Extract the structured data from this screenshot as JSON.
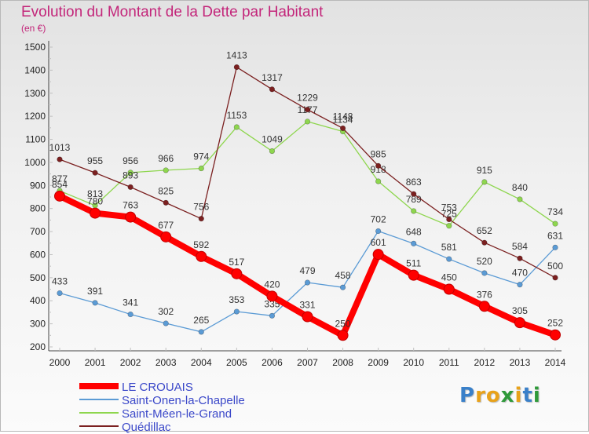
{
  "chart_data": {
    "type": "line",
    "title": "Evolution du Montant de la Dette par Habitant",
    "unit": "(en €)",
    "x": [
      "2000",
      "2001",
      "2002",
      "2003",
      "2004",
      "2005",
      "2006",
      "2007",
      "2008",
      "2009",
      "2010",
      "2011",
      "2012",
      "2013",
      "2014"
    ],
    "yticks": [
      "200",
      "300",
      "400",
      "500",
      "600",
      "700",
      "800",
      "900",
      "1000",
      "1100",
      "1200",
      "1300",
      "1400",
      "1500"
    ],
    "ylim": [
      200,
      1500
    ],
    "grid": false,
    "legend_position": "bottom-left",
    "series": [
      {
        "name": "LE CROUAIS",
        "color": "#ff0000",
        "values": [
          854,
          780,
          763,
          677,
          592,
          517,
          420,
          331,
          250,
          601,
          511,
          450,
          376,
          305,
          252
        ],
        "labels": [
          "854",
          "780",
          "763",
          "677",
          "592",
          "517",
          "420",
          "331",
          "250",
          "601",
          "511",
          "450",
          "376",
          "305",
          "252"
        ]
      },
      {
        "name": "Saint-Onen-la-Chapelle",
        "color": "#5b9bd5",
        "values": [
          433,
          391,
          341,
          302,
          265,
          353,
          335,
          479,
          458,
          702,
          648,
          581,
          520,
          470,
          631
        ],
        "labels": [
          "433",
          "391",
          "341",
          "302",
          "265",
          "353",
          "335",
          "479",
          "458",
          "702",
          "648",
          "581",
          "520",
          "470",
          "631"
        ]
      },
      {
        "name": "Saint-Méen-le-Grand",
        "color": "#8ed64e",
        "values": [
          877,
          813,
          956,
          966,
          974,
          1153,
          1049,
          1177,
          1134,
          918,
          789,
          725,
          915,
          840,
          734
        ],
        "labels": [
          "877",
          "813",
          "956",
          "966",
          "974",
          "1153",
          "1049",
          "1177",
          "1134",
          "918",
          "789",
          "725",
          "915",
          "840",
          "734"
        ]
      },
      {
        "name": "Quédillac",
        "color": "#7b2020",
        "values": [
          1013,
          955,
          893,
          825,
          756,
          1413,
          1317,
          1229,
          1148,
          985,
          863,
          753,
          652,
          584,
          500
        ],
        "labels": [
          "1013",
          "955",
          "893",
          "825",
          "756",
          "1413",
          "1317",
          "1229",
          "1148",
          "985",
          "863",
          "753",
          "652",
          "584",
          "500"
        ]
      }
    ]
  },
  "brand": {
    "letters": [
      "P",
      "r",
      "o",
      "x",
      "i",
      "t",
      "i"
    ],
    "colors": [
      "#3a80c9",
      "#e8a21a",
      "#e8a21a",
      "#2f9a3a",
      "#e8a21a",
      "#3a80c9",
      "#2f9a3a"
    ]
  }
}
